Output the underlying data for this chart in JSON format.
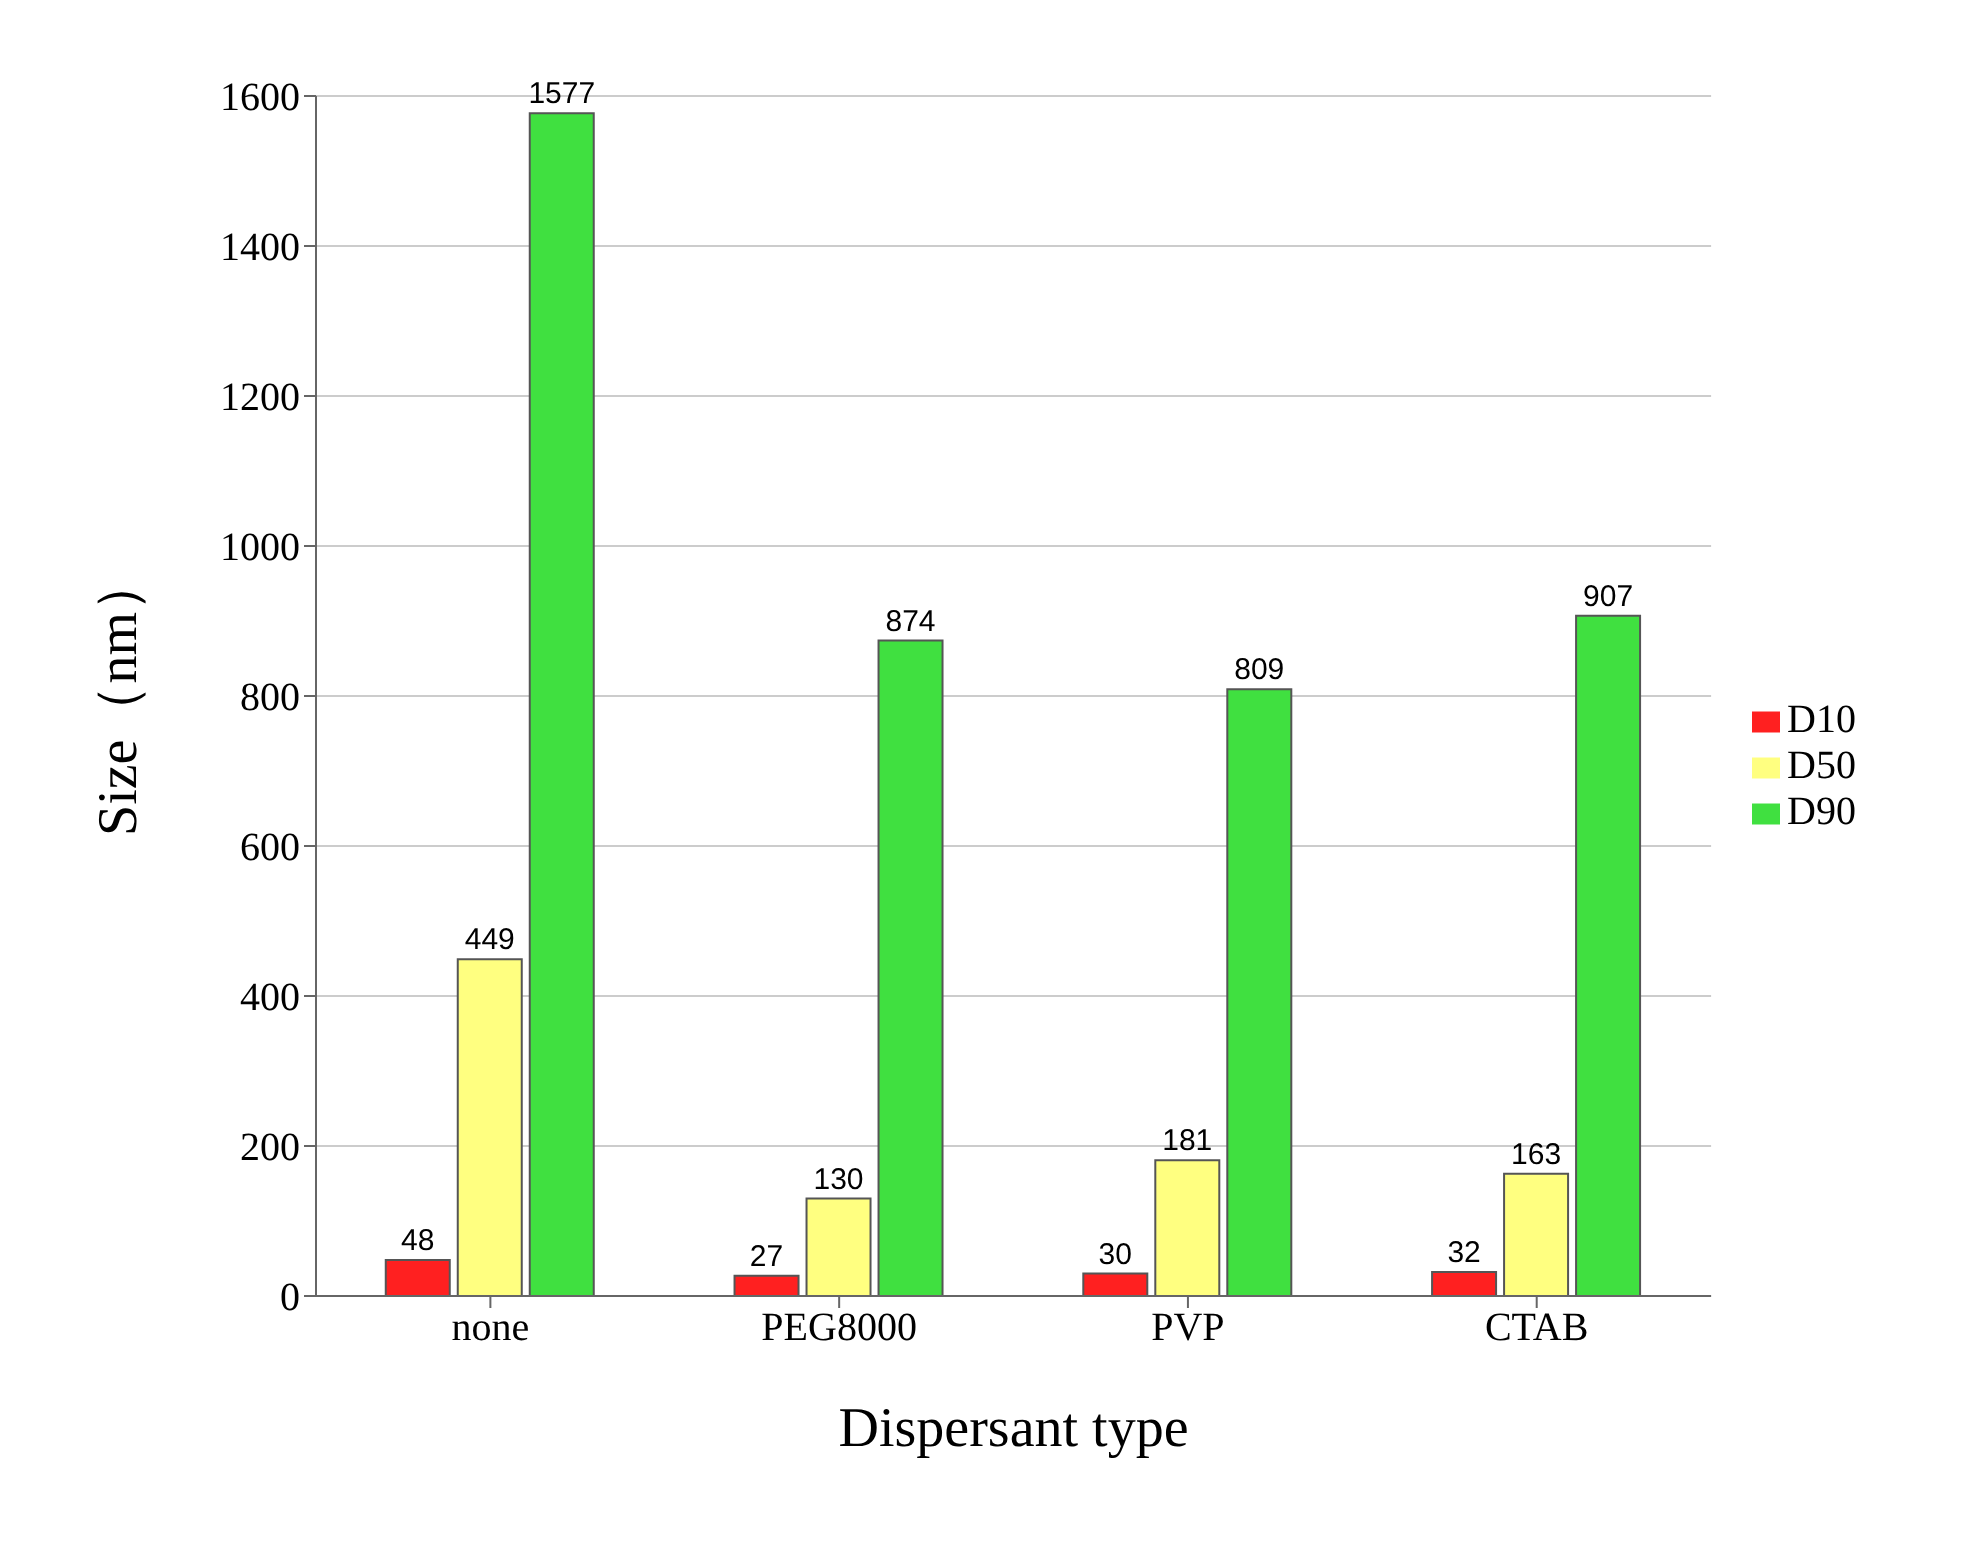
{
  "chart_data": {
    "type": "bar",
    "xlabel": "Dispersant type",
    "ylabel": "Size（nm）",
    "categories": [
      "none",
      "PEG8000",
      "PVP",
      "CTAB"
    ],
    "series": [
      {
        "name": "D10",
        "color": "#ff2020",
        "values": [
          48,
          27,
          30,
          32
        ]
      },
      {
        "name": "D50",
        "color": "#ffff80",
        "values": [
          449,
          130,
          181,
          163
        ]
      },
      {
        "name": "D90",
        "color": "#40e040",
        "values": [
          1577,
          874,
          809,
          907
        ]
      }
    ],
    "ylim": [
      0,
      1600
    ],
    "yticks": [
      0,
      200,
      400,
      600,
      800,
      1000,
      1200,
      1400,
      1600
    ],
    "grid": "y",
    "legend": "right",
    "data_labels": true
  }
}
